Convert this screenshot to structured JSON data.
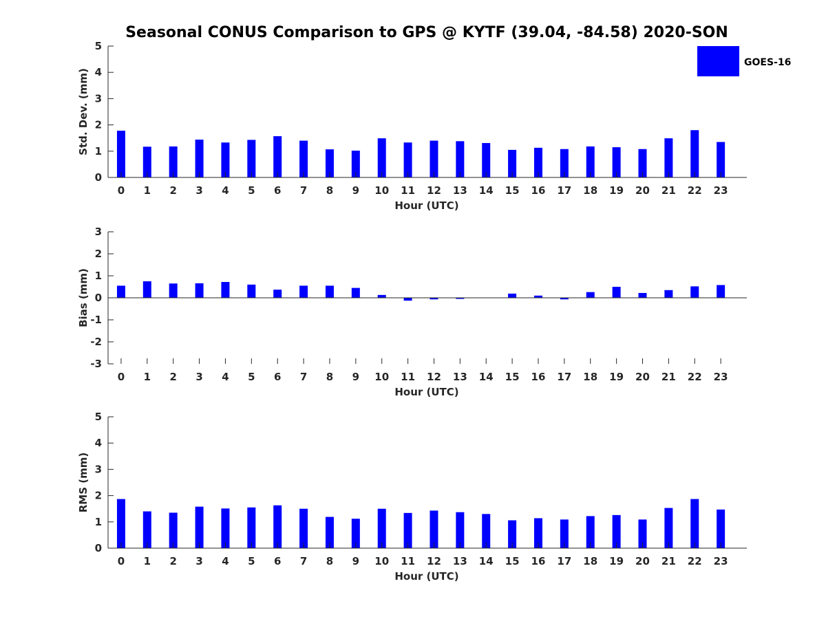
{
  "title": "Seasonal CONUS Comparison to GPS @ KYTF (39.04, -84.58) 2020-SON",
  "legend": {
    "label": "GOES-16",
    "placement": "top-right"
  },
  "colors": {
    "bar": "#0000ff",
    "axis": "#262626",
    "text": "#262626"
  },
  "chart_data": [
    {
      "type": "bar",
      "ylabel": "Std. Dev. (mm)",
      "xlabel": "Hour (UTC)",
      "ylim": [
        0,
        5
      ],
      "yticks": [
        0,
        1,
        2,
        3,
        4,
        5
      ],
      "grid": false,
      "categories": [
        "0",
        "1",
        "2",
        "3",
        "4",
        "5",
        "6",
        "7",
        "8",
        "9",
        "10",
        "11",
        "12",
        "13",
        "14",
        "15",
        "16",
        "17",
        "18",
        "19",
        "20",
        "21",
        "22",
        "23"
      ],
      "series": [
        {
          "name": "GOES-16",
          "values": [
            1.78,
            1.17,
            1.18,
            1.44,
            1.33,
            1.43,
            1.57,
            1.4,
            1.07,
            1.02,
            1.49,
            1.33,
            1.4,
            1.38,
            1.31,
            1.05,
            1.13,
            1.08,
            1.18,
            1.15,
            1.08,
            1.49,
            1.8,
            1.35
          ]
        }
      ]
    },
    {
      "type": "bar",
      "ylabel": "Bias (mm)",
      "xlabel": "Hour (UTC)",
      "ylim": [
        -3,
        3
      ],
      "yticks": [
        -3,
        -2,
        -1,
        0,
        1,
        2,
        3
      ],
      "grid": false,
      "categories": [
        "0",
        "1",
        "2",
        "3",
        "4",
        "5",
        "6",
        "7",
        "8",
        "9",
        "10",
        "11",
        "12",
        "13",
        "14",
        "15",
        "16",
        "17",
        "18",
        "19",
        "20",
        "21",
        "22",
        "23"
      ],
      "series": [
        {
          "name": "GOES-16",
          "values": [
            0.55,
            0.75,
            0.65,
            0.66,
            0.72,
            0.6,
            0.37,
            0.55,
            0.55,
            0.45,
            0.13,
            -0.13,
            -0.07,
            -0.05,
            0.0,
            0.19,
            0.1,
            -0.07,
            0.26,
            0.5,
            0.22,
            0.35,
            0.52,
            0.58
          ]
        }
      ]
    },
    {
      "type": "bar",
      "ylabel": "RMS (mm)",
      "xlabel": "Hour (UTC)",
      "ylim": [
        0,
        5
      ],
      "yticks": [
        0,
        1,
        2,
        3,
        4,
        5
      ],
      "grid": false,
      "categories": [
        "0",
        "1",
        "2",
        "3",
        "4",
        "5",
        "6",
        "7",
        "8",
        "9",
        "10",
        "11",
        "12",
        "13",
        "14",
        "15",
        "16",
        "17",
        "18",
        "19",
        "20",
        "21",
        "22",
        "23"
      ],
      "series": [
        {
          "name": "GOES-16",
          "values": [
            1.87,
            1.4,
            1.35,
            1.58,
            1.51,
            1.55,
            1.63,
            1.5,
            1.19,
            1.12,
            1.5,
            1.34,
            1.43,
            1.37,
            1.3,
            1.06,
            1.14,
            1.09,
            1.22,
            1.26,
            1.09,
            1.53,
            1.87,
            1.47
          ]
        }
      ]
    }
  ]
}
